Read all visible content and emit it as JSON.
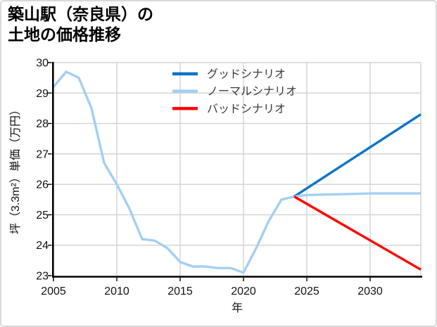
{
  "title": {
    "line1": "築山駅（奈良県）の",
    "line2": "土地の価格推移"
  },
  "chart_data": {
    "type": "line",
    "title": "築山駅（奈良県）の土地の価格推移",
    "xlabel": "年",
    "ylabel": "坪（3.3m²）単価（万円）",
    "xlim": [
      2005,
      2034
    ],
    "ylim": [
      23,
      30
    ],
    "x_ticks": [
      2005,
      2010,
      2015,
      2020,
      2025,
      2030
    ],
    "y_ticks": [
      23,
      24,
      25,
      26,
      27,
      28,
      29,
      30
    ],
    "grid": true,
    "legend_position": "upper center",
    "series": [
      {
        "id": "historical",
        "in_legend": false,
        "color": "#a3cff5",
        "x": [
          2005,
          2006,
          2007,
          2008,
          2009,
          2010,
          2011,
          2012,
          2013,
          2014,
          2015,
          2016,
          2017,
          2018,
          2019,
          2020,
          2021,
          2022,
          2023,
          2024
        ],
        "values": [
          29.2,
          29.7,
          29.5,
          28.5,
          26.7,
          26.0,
          25.2,
          24.2,
          24.15,
          23.9,
          23.45,
          23.3,
          23.3,
          23.25,
          23.25,
          23.1,
          23.9,
          24.8,
          25.5,
          25.6
        ]
      },
      {
        "id": "good-scenario",
        "name": "グッドシナリオ",
        "in_legend": true,
        "color": "#0d74c8",
        "x": [
          2024,
          2034
        ],
        "values": [
          25.6,
          28.3
        ]
      },
      {
        "id": "normal-scenario",
        "name": "ノーマルシナリオ",
        "in_legend": true,
        "color": "#a3cff5",
        "x": [
          2024,
          2025,
          2030,
          2034
        ],
        "values": [
          25.6,
          25.65,
          25.7,
          25.7
        ]
      },
      {
        "id": "bad-scenario",
        "name": "バッドシナリオ",
        "in_legend": true,
        "color": "#fe0000",
        "x": [
          2024,
          2034
        ],
        "values": [
          25.6,
          23.2
        ]
      }
    ],
    "legend": [
      "グッドシナリオ",
      "ノーマルシナリオ",
      "バッドシナリオ"
    ]
  },
  "colors": {
    "good": "#0d74c8",
    "normal": "#a3cff5",
    "bad": "#fe0000",
    "grid": "#d2d2d2",
    "frame_border": "#d9d9d9"
  }
}
